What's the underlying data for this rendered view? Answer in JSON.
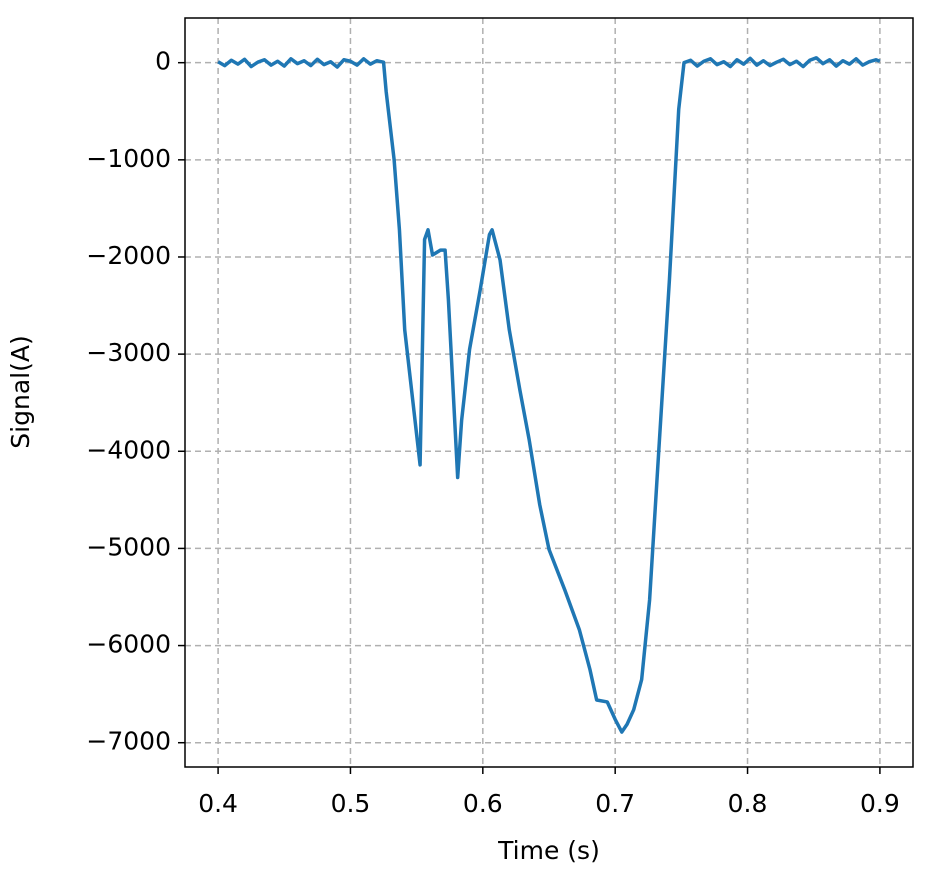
{
  "chart_data": {
    "type": "line",
    "xlabel": "Time (s)",
    "ylabel": "Signal(A)",
    "xlim": [
      0.375,
      0.925
    ],
    "ylim": [
      -7250,
      460
    ],
    "xticks": [
      0.4,
      0.5,
      0.6,
      0.7,
      0.8,
      0.9
    ],
    "yticks": [
      0,
      {
        "value": -1000,
        "label": "−1000"
      },
      {
        "value": -2000,
        "label": "−2000"
      },
      {
        "value": -3000,
        "label": "−3000"
      },
      {
        "value": -4000,
        "label": "−4000"
      },
      {
        "value": -5000,
        "label": "−5000"
      },
      {
        "value": -6000,
        "label": "−6000"
      },
      {
        "value": -7000,
        "label": "−7000"
      }
    ],
    "grid": true,
    "series": [
      {
        "color": "#1f77b4",
        "x": [
          0.4,
          0.405,
          0.41,
          0.415,
          0.42,
          0.425,
          0.43,
          0.435,
          0.44,
          0.445,
          0.45,
          0.455,
          0.46,
          0.465,
          0.47,
          0.475,
          0.48,
          0.485,
          0.49,
          0.495,
          0.5,
          0.505,
          0.51,
          0.515,
          0.52,
          0.525,
          0.527,
          0.533,
          0.537,
          0.541,
          0.5526,
          0.556,
          0.5586,
          0.562,
          0.568,
          0.5715,
          0.574,
          0.581,
          0.584,
          0.59,
          0.598,
          0.605,
          0.607,
          0.613,
          0.62,
          0.628,
          0.635,
          0.643,
          0.65,
          0.662,
          0.673,
          0.681,
          0.686,
          0.694,
          0.7,
          0.705,
          0.709,
          0.714,
          0.72,
          0.726,
          0.733,
          0.741,
          0.748,
          0.752,
          0.757,
          0.762,
          0.767,
          0.772,
          0.777,
          0.782,
          0.787,
          0.792,
          0.797,
          0.802,
          0.807,
          0.812,
          0.817,
          0.822,
          0.827,
          0.832,
          0.837,
          0.842,
          0.847,
          0.852,
          0.857,
          0.862,
          0.867,
          0.872,
          0.877,
          0.882,
          0.887,
          0.892,
          0.897,
          0.9
        ],
        "values": [
          10,
          -30,
          25,
          -15,
          35,
          -40,
          5,
          30,
          -25,
          15,
          -35,
          40,
          -10,
          20,
          -30,
          35,
          -20,
          10,
          -45,
          30,
          15,
          -25,
          40,
          -15,
          20,
          5,
          -300,
          -1000,
          -1720,
          -2750,
          -4140,
          -1820,
          -1720,
          -1980,
          -1930,
          -1930,
          -2440,
          -4270,
          -3680,
          -2950,
          -2340,
          -1770,
          -1720,
          -2030,
          -2750,
          -3370,
          -3880,
          -4550,
          -5010,
          -5430,
          -5840,
          -6250,
          -6560,
          -6580,
          -6760,
          -6890,
          -6810,
          -6660,
          -6350,
          -5530,
          -3980,
          -2230,
          -480,
          0,
          25,
          -35,
          15,
          40,
          -20,
          10,
          -40,
          30,
          -15,
          45,
          -25,
          20,
          -30,
          5,
          35,
          -20,
          15,
          -40,
          25,
          50,
          -10,
          30,
          -35,
          20,
          -15,
          40,
          -25,
          10,
          30,
          15
        ]
      }
    ]
  }
}
